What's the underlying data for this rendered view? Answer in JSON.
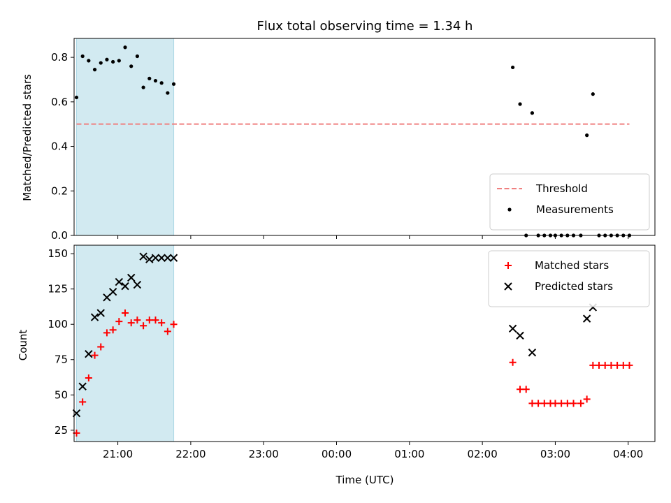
{
  "chart_data": [
    {
      "type": "scatter",
      "title": "Flux total observing time = 1.34 h",
      "xlabel": "",
      "ylabel": "Matched/Predicted stars",
      "ylim": [
        0,
        0.885
      ],
      "xlim": [
        "20:24",
        "04:22"
      ],
      "x_ticks": [
        "21:00",
        "22:00",
        "23:00",
        "00:00",
        "01:00",
        "02:00",
        "03:00",
        "04:00"
      ],
      "x_tick_labels_visible": false,
      "y_ticks": [
        "0.0",
        "0.2",
        "0.4",
        "0.6",
        "0.8"
      ],
      "shaded_span": {
        "from": "20:26",
        "to": "21:46",
        "color": "#add8e6"
      },
      "threshold": {
        "name": "Threshold",
        "value": 0.5,
        "from": "20:26",
        "to": "04:01",
        "color": "#f08080",
        "style": "dashed"
      },
      "legend": {
        "position": "lower-right",
        "entries": [
          "Threshold",
          "Measurements"
        ]
      },
      "series": [
        {
          "name": "Measurements",
          "marker": "dot",
          "color": "#000000",
          "points": [
            [
              "20:26",
              0.62
            ],
            [
              "20:31",
              0.805
            ],
            [
              "20:36",
              0.785
            ],
            [
              "20:41",
              0.745
            ],
            [
              "20:46",
              0.775
            ],
            [
              "20:51",
              0.79
            ],
            [
              "20:56",
              0.78
            ],
            [
              "21:01",
              0.785
            ],
            [
              "21:06",
              0.845
            ],
            [
              "21:11",
              0.76
            ],
            [
              "21:16",
              0.805
            ],
            [
              "21:21",
              0.665
            ],
            [
              "21:26",
              0.705
            ],
            [
              "21:31",
              0.695
            ],
            [
              "21:36",
              0.685
            ],
            [
              "21:41",
              0.64
            ],
            [
              "21:46",
              0.68
            ],
            [
              "02:25",
              0.755
            ],
            [
              "02:31",
              0.59
            ],
            [
              "02:36",
              0.0
            ],
            [
              "02:41",
              0.55
            ],
            [
              "02:46",
              0.0
            ],
            [
              "02:51",
              0.0
            ],
            [
              "02:56",
              0.0
            ],
            [
              "03:00",
              0.0
            ],
            [
              "03:05",
              0.0
            ],
            [
              "03:10",
              0.0
            ],
            [
              "03:15",
              0.0
            ],
            [
              "03:21",
              0.0
            ],
            [
              "03:26",
              0.45
            ],
            [
              "03:31",
              0.635
            ],
            [
              "03:36",
              0.0
            ],
            [
              "03:41",
              0.0
            ],
            [
              "03:46",
              0.0
            ],
            [
              "03:51",
              0.0
            ],
            [
              "03:56",
              0.0
            ],
            [
              "04:01",
              0.0
            ]
          ]
        }
      ]
    },
    {
      "type": "scatter",
      "title": "",
      "xlabel": "Time (UTC)",
      "ylabel": "Count",
      "ylim": [
        17,
        156
      ],
      "xlim": [
        "20:24",
        "04:22"
      ],
      "x_ticks": [
        "21:00",
        "22:00",
        "23:00",
        "00:00",
        "01:00",
        "02:00",
        "03:00",
        "04:00"
      ],
      "y_ticks": [
        "25",
        "50",
        "75",
        "100",
        "125",
        "150"
      ],
      "shaded_span": {
        "from": "20:26",
        "to": "21:46",
        "color": "#add8e6"
      },
      "legend": {
        "position": "top-right",
        "entries": [
          "Matched stars",
          "Predicted stars"
        ]
      },
      "series": [
        {
          "name": "Matched stars",
          "marker": "plus",
          "color": "#ff0000",
          "points": [
            [
              "20:26",
              23
            ],
            [
              "20:31",
              45
            ],
            [
              "20:36",
              62
            ],
            [
              "20:41",
              78
            ],
            [
              "20:46",
              84
            ],
            [
              "20:51",
              94
            ],
            [
              "20:56",
              96
            ],
            [
              "21:01",
              102
            ],
            [
              "21:06",
              108
            ],
            [
              "21:11",
              101
            ],
            [
              "21:16",
              103
            ],
            [
              "21:21",
              99
            ],
            [
              "21:26",
              103
            ],
            [
              "21:31",
              103
            ],
            [
              "21:36",
              101
            ],
            [
              "21:41",
              95
            ],
            [
              "21:46",
              100
            ],
            [
              "02:25",
              73
            ],
            [
              "02:31",
              54
            ],
            [
              "02:36",
              54
            ],
            [
              "02:41",
              44
            ],
            [
              "02:46",
              44
            ],
            [
              "02:51",
              44
            ],
            [
              "02:56",
              44
            ],
            [
              "03:00",
              44
            ],
            [
              "03:05",
              44
            ],
            [
              "03:10",
              44
            ],
            [
              "03:15",
              44
            ],
            [
              "03:21",
              44
            ],
            [
              "03:26",
              47
            ],
            [
              "03:31",
              71
            ],
            [
              "03:36",
              71
            ],
            [
              "03:41",
              71
            ],
            [
              "03:46",
              71
            ],
            [
              "03:51",
              71
            ],
            [
              "03:56",
              71
            ],
            [
              "04:01",
              71
            ]
          ]
        },
        {
          "name": "Predicted stars",
          "marker": "x",
          "color": "#000000",
          "points": [
            [
              "20:26",
              37
            ],
            [
              "20:31",
              56
            ],
            [
              "20:36",
              79
            ],
            [
              "20:41",
              105
            ],
            [
              "20:46",
              108
            ],
            [
              "20:51",
              119
            ],
            [
              "20:56",
              123
            ],
            [
              "21:01",
              130
            ],
            [
              "21:06",
              127
            ],
            [
              "21:11",
              133
            ],
            [
              "21:16",
              128
            ],
            [
              "21:21",
              148
            ],
            [
              "21:26",
              146
            ],
            [
              "21:31",
              147
            ],
            [
              "21:36",
              147
            ],
            [
              "21:41",
              147
            ],
            [
              "21:46",
              147
            ],
            [
              "02:25",
              97
            ],
            [
              "02:31",
              92
            ],
            [
              "02:41",
              80
            ],
            [
              "03:26",
              104
            ],
            [
              "03:31",
              112
            ]
          ]
        }
      ]
    }
  ]
}
